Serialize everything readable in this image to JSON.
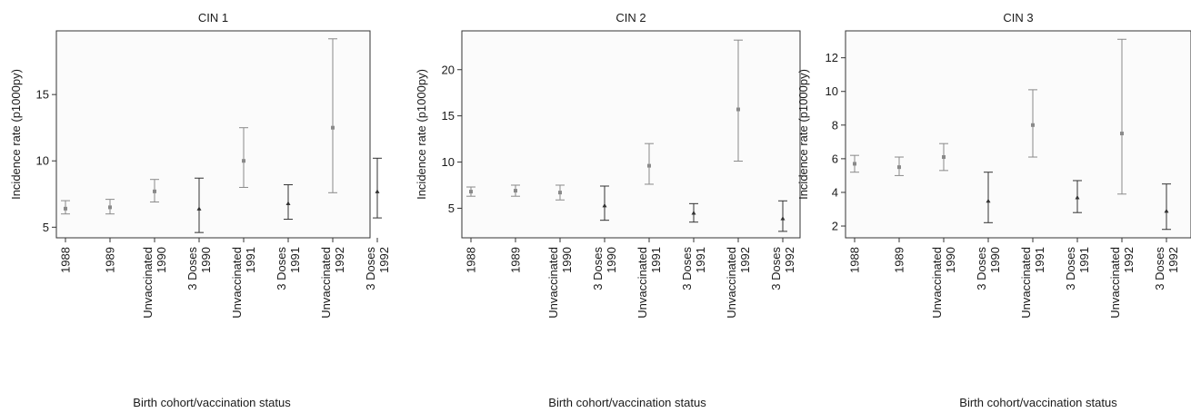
{
  "chart_data": [
    {
      "type": "scatter",
      "title": "CIN 1",
      "xlabel": "Birth cohort/vaccination status",
      "ylabel": "Incidence rate (p1000py)",
      "categories": [
        [
          "1988"
        ],
        [
          "1989"
        ],
        [
          "Unvaccinated",
          "1990"
        ],
        [
          "3 Doses",
          "1990"
        ],
        [
          "Unvaccinated",
          "1991"
        ],
        [
          "3 Doses",
          "1991"
        ],
        [
          "Unvaccinated",
          "1992"
        ],
        [
          "3 Doses",
          "1992"
        ]
      ],
      "ylim": [
        4.2,
        19.8
      ],
      "yticks": [
        5,
        10,
        15
      ],
      "points": [
        {
          "value": 6.4,
          "lower": 6.0,
          "upper": 7.0,
          "marker": "square"
        },
        {
          "value": 6.5,
          "lower": 6.0,
          "upper": 7.1,
          "marker": "square"
        },
        {
          "value": 7.7,
          "lower": 6.9,
          "upper": 8.6,
          "marker": "square"
        },
        {
          "value": 6.4,
          "lower": 4.6,
          "upper": 8.7,
          "marker": "triangle"
        },
        {
          "value": 10.0,
          "lower": 8.0,
          "upper": 12.5,
          "marker": "square"
        },
        {
          "value": 6.8,
          "lower": 5.6,
          "upper": 8.2,
          "marker": "triangle"
        },
        {
          "value": 12.5,
          "lower": 7.6,
          "upper": 19.2,
          "marker": "square"
        },
        {
          "value": 7.7,
          "lower": 5.7,
          "upper": 10.2,
          "marker": "triangle"
        }
      ]
    },
    {
      "type": "scatter",
      "title": "CIN 2",
      "xlabel": "Birth cohort/vaccination status",
      "ylabel": "Incidence rate (p1000py)",
      "categories": [
        [
          "1988"
        ],
        [
          "1989"
        ],
        [
          "Unvaccinated",
          "1990"
        ],
        [
          "3 Doses",
          "1990"
        ],
        [
          "Unvaccinated",
          "1991"
        ],
        [
          "3 Doses",
          "1991"
        ],
        [
          "Unvaccinated",
          "1992"
        ],
        [
          "3 Doses",
          "1992"
        ]
      ],
      "ylim": [
        1.8,
        24.2
      ],
      "yticks": [
        5,
        10,
        15,
        20
      ],
      "points": [
        {
          "value": 6.8,
          "lower": 6.3,
          "upper": 7.3,
          "marker": "square"
        },
        {
          "value": 6.9,
          "lower": 6.3,
          "upper": 7.5,
          "marker": "square"
        },
        {
          "value": 6.7,
          "lower": 5.9,
          "upper": 7.5,
          "marker": "square"
        },
        {
          "value": 5.3,
          "lower": 3.7,
          "upper": 7.4,
          "marker": "triangle"
        },
        {
          "value": 9.6,
          "lower": 7.6,
          "upper": 12.0,
          "marker": "square"
        },
        {
          "value": 4.5,
          "lower": 3.5,
          "upper": 5.5,
          "marker": "triangle"
        },
        {
          "value": 15.7,
          "lower": 10.1,
          "upper": 23.2,
          "marker": "square"
        },
        {
          "value": 3.9,
          "lower": 2.5,
          "upper": 5.8,
          "marker": "triangle"
        }
      ]
    },
    {
      "type": "scatter",
      "title": "CIN 3",
      "xlabel": "Birth cohort/vaccination status",
      "ylabel": "Incidence rate (p1000py)",
      "categories": [
        [
          "1988"
        ],
        [
          "1989"
        ],
        [
          "Unvaccinated",
          "1990"
        ],
        [
          "3 Doses",
          "1990"
        ],
        [
          "Unvaccinated",
          "1991"
        ],
        [
          "3 Doses",
          "1991"
        ],
        [
          "Unvaccinated",
          "1992"
        ],
        [
          "3 Doses",
          "1992"
        ]
      ],
      "ylim": [
        1.3,
        13.6
      ],
      "yticks": [
        2,
        4,
        6,
        8,
        10,
        12
      ],
      "points": [
        {
          "value": 5.7,
          "lower": 5.2,
          "upper": 6.2,
          "marker": "square"
        },
        {
          "value": 5.5,
          "lower": 5.0,
          "upper": 6.1,
          "marker": "square"
        },
        {
          "value": 6.1,
          "lower": 5.3,
          "upper": 6.9,
          "marker": "square"
        },
        {
          "value": 3.5,
          "lower": 2.2,
          "upper": 5.2,
          "marker": "triangle"
        },
        {
          "value": 8.0,
          "lower": 6.1,
          "upper": 10.1,
          "marker": "square"
        },
        {
          "value": 3.7,
          "lower": 2.8,
          "upper": 4.7,
          "marker": "triangle"
        },
        {
          "value": 7.5,
          "lower": 3.9,
          "upper": 13.1,
          "marker": "square"
        },
        {
          "value": 2.9,
          "lower": 1.8,
          "upper": 4.5,
          "marker": "triangle"
        }
      ]
    }
  ]
}
